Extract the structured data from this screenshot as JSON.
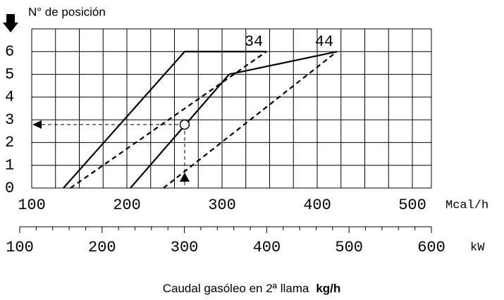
{
  "chart_data": {
    "type": "line",
    "title": "N° de posición",
    "xlabel": "Mcal/h",
    "x2label": "kW",
    "footer": {
      "text": "Caudal gasóleo en 2ª llama",
      "unit": "kg/h"
    },
    "xlim": [
      100,
      520
    ],
    "xticks": [
      100,
      200,
      300,
      400,
      500
    ],
    "xminor": [
      125,
      150,
      175,
      225,
      250,
      275,
      325,
      350,
      375,
      425,
      450,
      475,
      520
    ],
    "x2lim": [
      100,
      600
    ],
    "x2ticks": [
      100,
      200,
      300,
      400,
      500,
      600
    ],
    "x2minor": [
      120,
      140,
      160,
      180,
      220,
      240,
      260,
      280,
      320,
      340,
      360,
      380,
      420,
      440,
      460,
      480,
      520,
      540,
      560,
      580
    ],
    "ylim": [
      0,
      7
    ],
    "yticks": [
      0,
      1,
      2,
      3,
      4,
      5,
      6
    ],
    "grid": true,
    "series": [
      {
        "name": "34",
        "color": "#000",
        "dash": false,
        "x": [
          133.3,
          260.7,
          346.7
        ],
        "values": [
          0,
          6,
          6
        ]
      },
      {
        "color": "#000",
        "dash": true,
        "x": [
          140.7,
          346.7
        ],
        "values": [
          0,
          6
        ]
      },
      {
        "name": "44",
        "color": "#000",
        "dash": false,
        "x": [
          203.7,
          307.4,
          420.7
        ],
        "values": [
          0,
          5,
          6
        ]
      },
      {
        "color": "#000",
        "dash": true,
        "x": [
          238.5,
          420.7
        ],
        "values": [
          0,
          6
        ]
      }
    ],
    "marker": {
      "x": 260.7,
      "y": 2.79
    }
  }
}
